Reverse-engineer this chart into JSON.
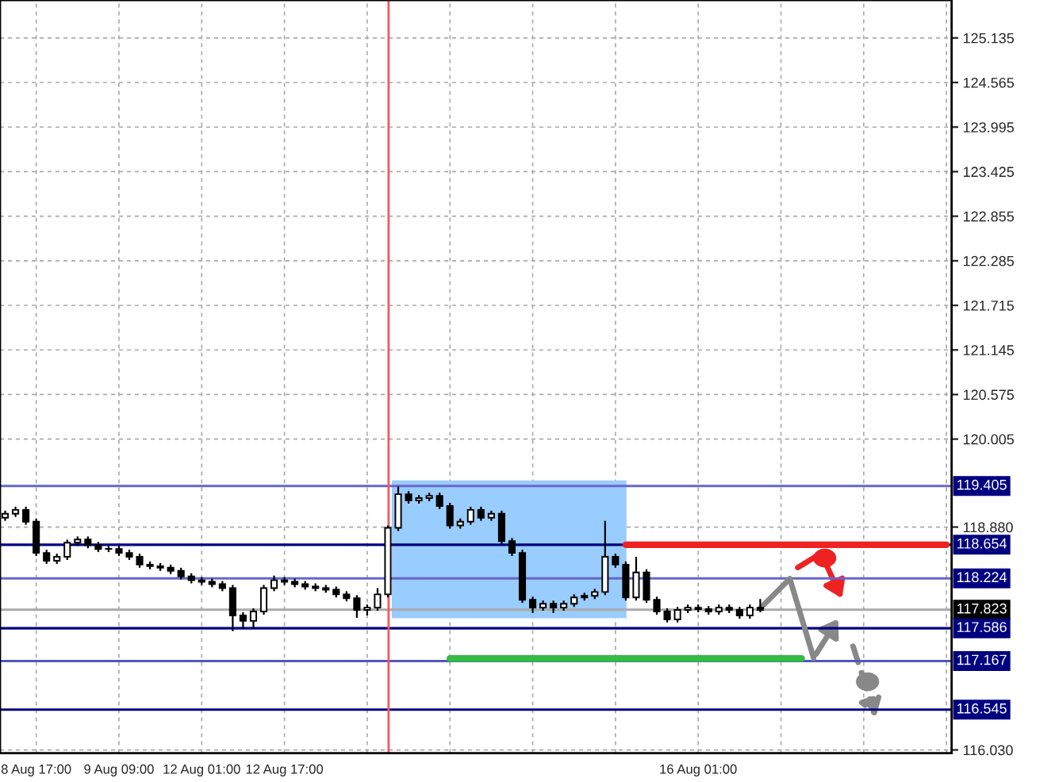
{
  "chart_data": {
    "type": "candlestick",
    "categories": [
      null,
      null,
      null,
      "8 Aug 17:00",
      null,
      null,
      null,
      null,
      null,
      null,
      null,
      "9 Aug 09:00",
      null,
      null,
      null,
      null,
      null,
      null,
      null,
      "12 Aug 01:00",
      null,
      null,
      null,
      null,
      null,
      null,
      null,
      "12 Aug 17:00",
      null,
      null,
      null,
      null,
      null,
      null,
      null,
      null,
      null,
      null,
      null,
      null,
      null,
      null,
      null,
      null,
      null,
      null,
      null,
      null,
      null,
      null,
      null,
      null,
      null,
      null,
      null,
      null,
      null,
      null,
      null,
      null,
      null,
      null,
      null,
      null,
      null,
      null,
      null,
      "16 Aug 01:00",
      null,
      null,
      null,
      null,
      null,
      null,
      null,
      null,
      null,
      null,
      null,
      null,
      null,
      null,
      null,
      null,
      null,
      null,
      null,
      null,
      null,
      null,
      null,
      null
    ],
    "ohlc": [
      [
        119.0,
        119.09,
        118.96,
        119.05
      ],
      [
        119.05,
        119.14,
        119.01,
        119.1
      ],
      [
        119.1,
        119.14,
        118.91,
        118.95
      ],
      [
        118.95,
        118.99,
        118.51,
        118.55
      ],
      [
        118.55,
        118.59,
        118.41,
        118.45
      ],
      [
        118.45,
        118.54,
        118.41,
        118.5
      ],
      [
        118.5,
        118.72,
        118.46,
        118.68
      ],
      [
        118.68,
        118.76,
        118.64,
        118.72
      ],
      [
        118.72,
        118.76,
        118.61,
        118.65
      ],
      [
        118.65,
        118.69,
        118.56,
        118.6
      ],
      [
        118.6,
        118.64,
        118.56,
        118.6
      ],
      [
        118.6,
        118.64,
        118.51,
        118.55
      ],
      [
        118.55,
        118.59,
        118.46,
        118.5
      ],
      [
        118.5,
        118.54,
        118.36,
        118.4
      ],
      [
        118.4,
        118.44,
        118.34,
        118.38
      ],
      [
        118.38,
        118.42,
        118.32,
        118.36
      ],
      [
        118.36,
        118.4,
        118.28,
        118.32
      ],
      [
        118.32,
        118.36,
        118.21,
        118.25
      ],
      [
        118.25,
        118.29,
        118.16,
        118.2
      ],
      [
        118.2,
        118.24,
        118.14,
        118.18
      ],
      [
        118.18,
        118.22,
        118.11,
        118.15
      ],
      [
        118.15,
        118.19,
        118.06,
        118.1
      ],
      [
        118.1,
        118.14,
        117.55,
        117.75
      ],
      [
        117.75,
        117.79,
        117.58,
        117.68
      ],
      [
        117.68,
        117.84,
        117.58,
        117.8
      ],
      [
        117.8,
        118.14,
        117.76,
        118.1
      ],
      [
        118.1,
        118.26,
        118.06,
        118.2
      ],
      [
        118.2,
        118.24,
        118.14,
        118.18
      ],
      [
        118.18,
        118.22,
        118.11,
        118.15
      ],
      [
        118.15,
        118.19,
        118.08,
        118.12
      ],
      [
        118.12,
        118.16,
        118.06,
        118.1
      ],
      [
        118.1,
        118.14,
        118.04,
        118.08
      ],
      [
        118.08,
        118.12,
        117.98,
        118.02
      ],
      [
        118.02,
        118.06,
        117.93,
        117.97
      ],
      [
        117.97,
        118.01,
        117.72,
        117.82
      ],
      [
        117.82,
        117.89,
        117.75,
        117.85
      ],
      [
        117.85,
        118.1,
        117.81,
        118.02
      ],
      [
        118.02,
        118.9,
        117.98,
        118.87
      ],
      [
        118.87,
        119.4,
        118.83,
        119.3
      ],
      [
        119.3,
        119.34,
        119.18,
        119.22
      ],
      [
        119.22,
        119.29,
        119.18,
        119.25
      ],
      [
        119.25,
        119.32,
        119.21,
        119.28
      ],
      [
        119.28,
        119.32,
        119.11,
        119.15
      ],
      [
        119.15,
        119.19,
        118.86,
        118.9
      ],
      [
        118.9,
        118.99,
        118.86,
        118.95
      ],
      [
        118.95,
        119.14,
        118.91,
        119.1
      ],
      [
        119.1,
        119.14,
        118.96,
        119.0
      ],
      [
        119.0,
        119.09,
        118.96,
        119.05
      ],
      [
        119.05,
        119.09,
        118.66,
        118.7
      ],
      [
        118.7,
        118.74,
        118.51,
        118.55
      ],
      [
        118.55,
        118.59,
        117.91,
        117.95
      ],
      [
        117.95,
        117.99,
        117.78,
        117.85
      ],
      [
        117.85,
        117.94,
        117.81,
        117.9
      ],
      [
        117.9,
        117.94,
        117.78,
        117.85
      ],
      [
        117.85,
        117.94,
        117.81,
        117.9
      ],
      [
        117.9,
        118.02,
        117.86,
        117.98
      ],
      [
        117.98,
        118.04,
        117.94,
        118.0
      ],
      [
        118.0,
        118.09,
        117.96,
        118.05
      ],
      [
        118.05,
        118.96,
        118.01,
        118.5
      ],
      [
        118.5,
        118.54,
        118.36,
        118.4
      ],
      [
        118.4,
        118.44,
        117.94,
        117.98
      ],
      [
        117.98,
        118.5,
        117.94,
        118.3
      ],
      [
        118.3,
        118.34,
        117.91,
        117.95
      ],
      [
        117.95,
        117.99,
        117.76,
        117.8
      ],
      [
        117.8,
        117.84,
        117.66,
        117.7
      ],
      [
        117.7,
        117.86,
        117.66,
        117.82
      ],
      [
        117.82,
        117.89,
        117.78,
        117.85
      ],
      [
        117.85,
        117.89,
        117.79,
        117.83
      ],
      [
        117.83,
        117.87,
        117.76,
        117.8
      ],
      [
        117.8,
        117.89,
        117.76,
        117.85
      ],
      [
        117.85,
        117.89,
        117.78,
        117.82
      ],
      [
        117.82,
        117.86,
        117.71,
        117.75
      ],
      [
        117.75,
        117.89,
        117.71,
        117.85
      ],
      [
        117.85,
        117.96,
        117.79,
        117.82
      ],
      null,
      null,
      null,
      null,
      null,
      null,
      null,
      null,
      null,
      null,
      null,
      null,
      null,
      null,
      null,
      null,
      null,
      null
    ],
    "series": [
      {
        "type": "line",
        "color": "#ee2222",
        "values": [
          null,
          null,
          null,
          null,
          null,
          null,
          null,
          null,
          null,
          null,
          null,
          null,
          null,
          null,
          null,
          null,
          null,
          null,
          null,
          null,
          null,
          null,
          null,
          null,
          null,
          null,
          null,
          null,
          null,
          null,
          null,
          null,
          null,
          null,
          null,
          null,
          null,
          null,
          null,
          null,
          null,
          null,
          null,
          null,
          null,
          null,
          null,
          null,
          null,
          null,
          null,
          null,
          null,
          null,
          null,
          null,
          null,
          null,
          null,
          null,
          118.654,
          118.654,
          118.654,
          118.654,
          118.654,
          118.654,
          118.654,
          118.654,
          118.654,
          118.654,
          118.654,
          118.654,
          118.654,
          118.654,
          118.654,
          118.654,
          118.654,
          118.654,
          118.654,
          118.654,
          118.654,
          118.654,
          118.654,
          118.654,
          118.654,
          118.654,
          118.654,
          118.654,
          118.654,
          118.654,
          118.654,
          118.654
        ]
      },
      {
        "type": "line",
        "color": "#33bb44",
        "values": [
          null,
          null,
          null,
          null,
          null,
          null,
          null,
          null,
          null,
          null,
          null,
          null,
          null,
          null,
          null,
          null,
          null,
          null,
          null,
          null,
          null,
          null,
          null,
          null,
          null,
          null,
          null,
          null,
          null,
          null,
          null,
          null,
          null,
          null,
          null,
          null,
          null,
          null,
          null,
          null,
          null,
          null,
          null,
          117.2,
          117.2,
          117.2,
          117.2,
          117.2,
          117.2,
          117.2,
          117.2,
          117.2,
          117.2,
          117.2,
          117.2,
          117.2,
          117.2,
          117.2,
          117.2,
          117.2,
          117.2,
          117.2,
          117.2,
          117.2,
          117.2,
          117.2,
          117.2,
          117.2,
          117.2,
          117.2,
          117.2,
          117.2,
          117.2,
          117.2,
          117.2,
          117.2,
          117.2,
          117.2,
          null,
          null,
          null,
          null,
          null,
          null,
          null,
          null,
          null,
          null,
          null,
          null,
          null,
          null
        ]
      }
    ],
    "ref_lines": [
      {
        "axis": "y",
        "value": 119.405,
        "label": "119.405",
        "color": "#6666cc"
      },
      {
        "axis": "y",
        "value": 118.654,
        "label": "118.654",
        "color": "#000080"
      },
      {
        "axis": "y",
        "value": 118.224,
        "label": "118.224",
        "color": "#6666cc"
      },
      {
        "axis": "y",
        "value": 117.823,
        "label": "117.823",
        "color": "#aaaaaa"
      },
      {
        "axis": "y",
        "value": 117.586,
        "label": "117.586",
        "color": "#000080"
      },
      {
        "axis": "y",
        "value": 117.167,
        "label": "117.167",
        "color": "#5555bb"
      },
      {
        "axis": "y",
        "value": 116.545,
        "label": "116.545",
        "color": "#000080"
      }
    ],
    "ylim": [
      115.99,
      125.62
    ],
    "yticks": [
      {
        "value": 116.03,
        "label": "116.030"
      },
      {
        "value": 118.88,
        "label": "118.880"
      },
      120.005,
      120.575,
      121.145,
      121.715,
      122.285,
      122.855,
      123.425,
      123.995,
      124.565,
      125.135
    ],
    "grid": true
  }
}
